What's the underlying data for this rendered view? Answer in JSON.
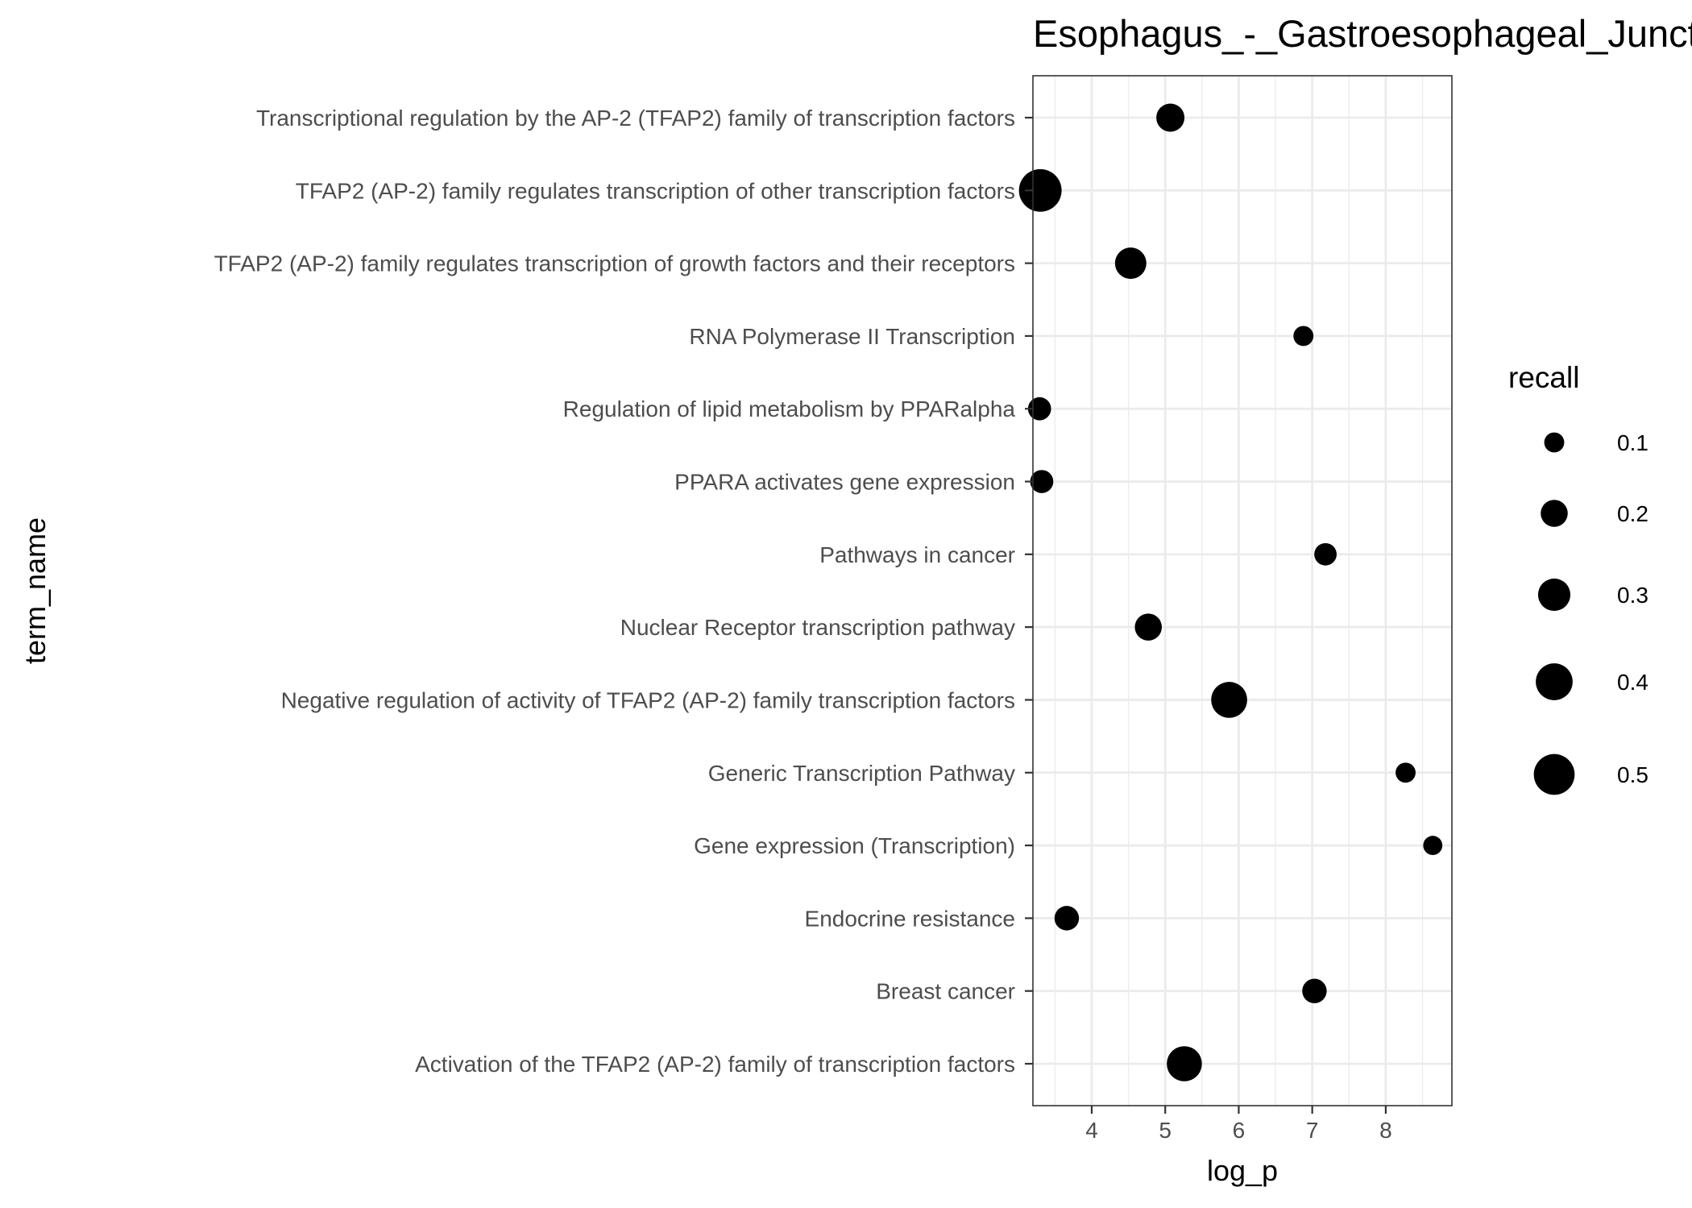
{
  "chart_data": {
    "type": "scatter",
    "title": "Esophagus_-_Gastroesophageal_Junction",
    "xlabel": "log_p",
    "ylabel": "term_name",
    "xlim": [
      3.2,
      8.9
    ],
    "x_ticks": [
      4,
      5,
      6,
      7,
      8
    ],
    "grid": true,
    "legend": {
      "title": "recall",
      "placement": "right",
      "entries": [
        {
          "label": "0.1",
          "value": 0.1
        },
        {
          "label": "0.2",
          "value": 0.2
        },
        {
          "label": "0.3",
          "value": 0.3
        },
        {
          "label": "0.4",
          "value": 0.4
        },
        {
          "label": "0.5",
          "value": 0.5
        }
      ]
    },
    "categories": [
      "Transcriptional regulation by the AP-2 (TFAP2) family of transcription factors",
      "TFAP2 (AP-2) family regulates transcription of other transcription factors",
      "TFAP2 (AP-2) family regulates transcription of growth factors and their receptors",
      "RNA Polymerase II Transcription",
      "Regulation of lipid metabolism by PPARalpha",
      "PPARA activates gene expression",
      "Pathways in cancer",
      "Nuclear Receptor transcription pathway",
      "Negative regulation of activity of TFAP2 (AP-2) family transcription factors",
      "Generic Transcription Pathway",
      "Gene expression (Transcription)",
      "Endocrine resistance",
      "Breast cancer",
      "Activation of the TFAP2 (AP-2) family of transcription factors"
    ],
    "points": [
      {
        "term": "Transcriptional regulation by the AP-2 (TFAP2) family of transcription factors",
        "log_p": 5.07,
        "recall": 0.22
      },
      {
        "term": "TFAP2 (AP-2) family regulates transcription of other transcription factors",
        "log_p": 3.3,
        "recall": 0.55
      },
      {
        "term": "TFAP2 (AP-2) family regulates transcription of growth factors and their receptors",
        "log_p": 4.53,
        "recall": 0.28
      },
      {
        "term": "RNA Polymerase II Transcription",
        "log_p": 6.88,
        "recall": 0.1
      },
      {
        "term": "Regulation of lipid metabolism by PPARalpha",
        "log_p": 3.29,
        "recall": 0.14
      },
      {
        "term": "PPARA activates gene expression",
        "log_p": 3.32,
        "recall": 0.14
      },
      {
        "term": "Pathways in cancer",
        "log_p": 7.18,
        "recall": 0.13
      },
      {
        "term": "Nuclear Receptor transcription pathway",
        "log_p": 4.77,
        "recall": 0.2
      },
      {
        "term": "Negative regulation of activity of TFAP2 (AP-2) family transcription factors",
        "log_p": 5.87,
        "recall": 0.38
      },
      {
        "term": "Generic Transcription Pathway",
        "log_p": 8.27,
        "recall": 0.1
      },
      {
        "term": "Gene expression (Transcription)",
        "log_p": 8.64,
        "recall": 0.09
      },
      {
        "term": "Endocrine resistance",
        "log_p": 3.66,
        "recall": 0.16
      },
      {
        "term": "Breast cancer",
        "log_p": 7.03,
        "recall": 0.16
      },
      {
        "term": "Activation of the TFAP2 (AP-2) family of transcription factors",
        "log_p": 5.26,
        "recall": 0.36
      }
    ]
  }
}
